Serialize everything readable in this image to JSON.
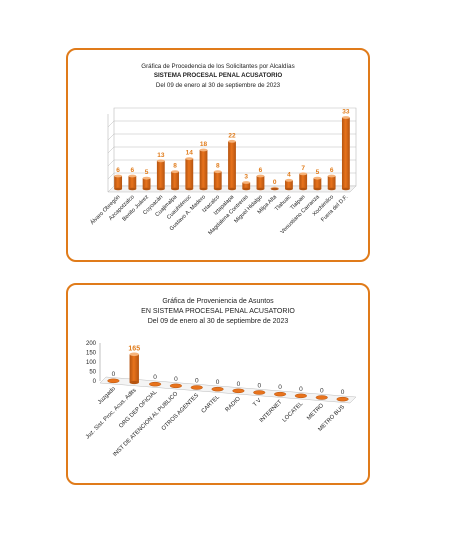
{
  "colors": {
    "frame": "#e07b1a",
    "bar_top": "#f6b37a",
    "bar_mid": "#e8731c",
    "bar_dark": "#b55410",
    "label": "#e07b1a",
    "grid": "#b9b9b9"
  },
  "chart_data": [
    {
      "type": "bar",
      "title_lines": [
        "Gráfica de Procedencia de los Solicitantes por Alcaldías",
        "SISTEMA PROCESAL PENAL ACUSATORIO",
        "Del  09  de  enero  al  30  de  septiembre  de  2023"
      ],
      "categories": [
        "Álvaro Obregón",
        "Azcapotzalco",
        "Benito Juárez",
        "Coyoacán",
        "Cuajimalpa",
        "Cuauhtémoc",
        "Gustavo A. Madero",
        "Iztacalco",
        "Iztapalapa",
        "Magdalena Contreras",
        "Miguel Hidalgo",
        "Milpa Alta",
        "Tlahuac",
        "Tlalpan",
        "Venustiano Carranza",
        "Xochimilco",
        "Fuera del D.F."
      ],
      "values": [
        6,
        6,
        5,
        13,
        8,
        14,
        18,
        8,
        22,
        3,
        6,
        0,
        4,
        7,
        5,
        6,
        33
      ],
      "ylim": [
        0,
        36
      ],
      "grid": true,
      "data_labels": true
    },
    {
      "type": "bar",
      "title_lines": [
        "Gráfica de Proveniencia de Asuntos",
        "EN SISTEMA PROCESAL PENAL ACUSATORIO",
        "Del  09 de enero  al  30  de  septiembre  de  2023"
      ],
      "categories": [
        "Juzgado",
        "Juz. Sist. Proc. Acus. Adlts",
        "ORG DEP OFICIAL",
        "INST DE ATENCION AL PUBLICO",
        "OTROS AGENTES",
        "CARTEL",
        "RADIO",
        "T V",
        "INTERNET",
        "LOCATEL",
        "METRO",
        "METRO BUS"
      ],
      "values": [
        0,
        165,
        0,
        0,
        0,
        0,
        0,
        0,
        0,
        0,
        0,
        0
      ],
      "ylim": [
        0,
        200
      ],
      "yticks": [
        "0",
        "50",
        "100",
        "150",
        "200"
      ],
      "grid": false,
      "data_labels": true
    }
  ]
}
